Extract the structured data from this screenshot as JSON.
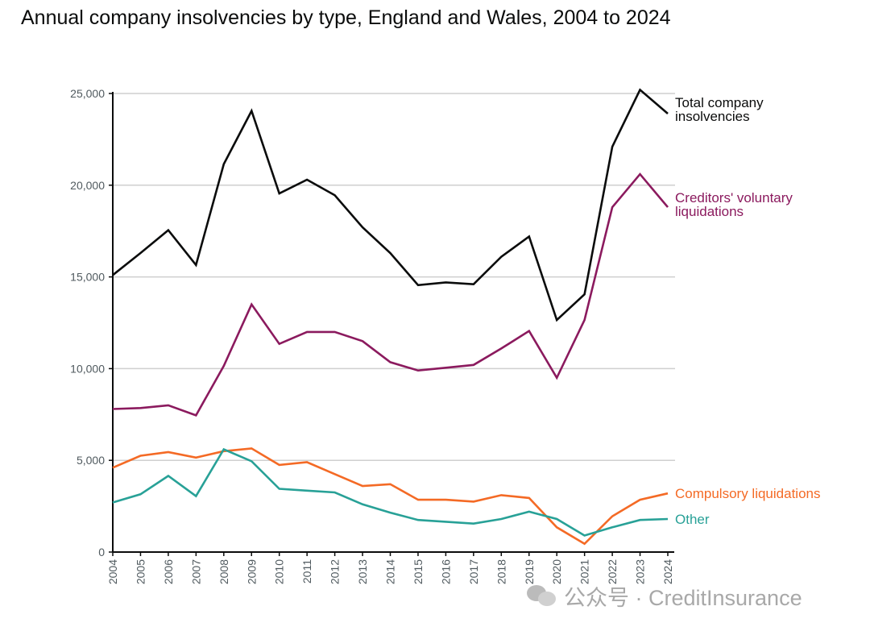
{
  "title": "Annual company insolvencies by type, England and Wales, 2004 to 2024",
  "watermark": "公众号 · CreditInsurance",
  "chart_data": {
    "type": "line",
    "x": [
      2004,
      2005,
      2006,
      2007,
      2008,
      2009,
      2010,
      2011,
      2012,
      2013,
      2014,
      2015,
      2016,
      2017,
      2018,
      2019,
      2020,
      2021,
      2022,
      2023,
      2024
    ],
    "ylim": [
      0,
      25000
    ],
    "yticks": [
      0,
      5000,
      10000,
      15000,
      20000,
      25000
    ],
    "ytick_labels": [
      "0",
      "5,000",
      "10,000",
      "15,000",
      "20,000",
      "25,000"
    ],
    "xlabel": "",
    "ylabel": "",
    "grid": "horizontal",
    "series": [
      {
        "name": "Total company insolvencies",
        "label_lines": [
          "Total company",
          "insolvencies"
        ],
        "color": "#0b0c0c",
        "values": [
          15100,
          16300,
          17550,
          15650,
          21150,
          24050,
          19550,
          20300,
          19450,
          17700,
          16300,
          14550,
          14700,
          14600,
          16100,
          17200,
          12650,
          14050,
          22100,
          25200,
          23900
        ]
      },
      {
        "name": "Creditors' voluntary liquidations",
        "label_lines": [
          "Creditors' voluntary",
          "liquidations"
        ],
        "color": "#8b1a5e",
        "values": [
          7800,
          7850,
          8000,
          7450,
          10150,
          13500,
          11350,
          12000,
          12000,
          11500,
          10350,
          9900,
          10050,
          10200,
          11100,
          12050,
          9500,
          12650,
          18800,
          20600,
          18800
        ]
      },
      {
        "name": "Compulsory liquidations",
        "label_lines": [
          "Compulsory liquidations"
        ],
        "color": "#f46a25",
        "values": [
          4600,
          5250,
          5450,
          5150,
          5500,
          5650,
          4750,
          4900,
          4250,
          3600,
          3700,
          2850,
          2850,
          2750,
          3100,
          2950,
          1350,
          450,
          1950,
          2850,
          3200
        ]
      },
      {
        "name": "Other",
        "label_lines": [
          "Other"
        ],
        "color": "#28a197",
        "values": [
          2700,
          3150,
          4150,
          3050,
          5600,
          4950,
          3450,
          3350,
          3250,
          2600,
          2150,
          1750,
          1650,
          1550,
          1800,
          2200,
          1800,
          900,
          1350,
          1750,
          1800
        ]
      }
    ]
  }
}
